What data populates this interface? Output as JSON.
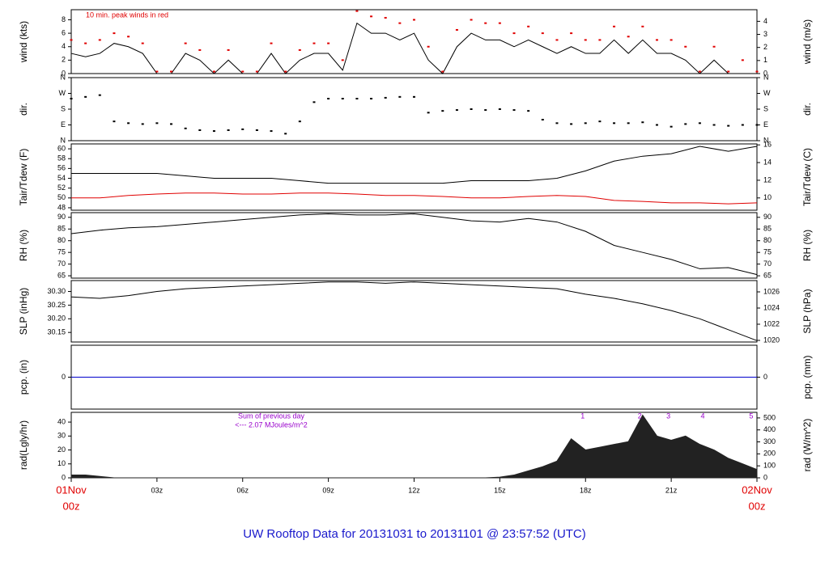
{
  "title": "UW Rooftop Data for 20131031  to  20131101 @ 23:57:52  (UTC)",
  "chart_data": [
    {
      "type": "line",
      "ylabel": "wind (kts)",
      "y2label": "wind (m/s)",
      "annotation": "10 min. peak winds in red",
      "annotation_color": "#e00000",
      "xlim": [
        0,
        24
      ],
      "ylim": [
        0,
        9.5
      ],
      "yticks": [
        0,
        2,
        4,
        6,
        8
      ],
      "y2lim": [
        0,
        4.89
      ],
      "y2ticks": [
        0,
        1,
        2,
        3,
        4
      ],
      "x": [
        0,
        0.5,
        1,
        1.5,
        2,
        2.5,
        3,
        3.5,
        4,
        4.5,
        5,
        5.5,
        6,
        6.5,
        7,
        7.5,
        8,
        8.5,
        9,
        9.5,
        10,
        10.5,
        11,
        11.5,
        12,
        12.5,
        13,
        13.5,
        14,
        14.5,
        15,
        15.5,
        16,
        16.5,
        17,
        17.5,
        18,
        18.5,
        19,
        19.5,
        20,
        20.5,
        21,
        21.5,
        22,
        22.5,
        23,
        23.5,
        24
      ],
      "series": [
        {
          "name": "wind",
          "style": "line",
          "color": "#000000",
          "values": [
            3,
            2.5,
            3,
            4.5,
            4,
            3,
            0,
            0,
            3,
            2,
            0,
            2,
            0,
            0,
            3,
            0,
            2,
            3,
            3,
            0.5,
            7.5,
            6,
            6,
            5,
            6,
            2,
            0,
            4,
            6,
            5,
            5,
            4,
            5,
            4,
            3,
            4,
            3,
            3,
            5,
            3,
            5,
            3,
            3,
            2,
            0,
            2,
            0,
            0,
            0
          ]
        },
        {
          "name": "peak",
          "style": "points",
          "color": "#e00000",
          "values": [
            5,
            4.5,
            5,
            6,
            5.5,
            4.5,
            0.3,
            0.3,
            4.5,
            3.5,
            0.3,
            3.5,
            0.3,
            0.3,
            4.5,
            0.3,
            3.5,
            4.5,
            4.5,
            2,
            9.3,
            8.5,
            8.3,
            7.5,
            8,
            4,
            0.3,
            6.5,
            8,
            7.5,
            7.5,
            6,
            7,
            6,
            5,
            6,
            5,
            5,
            7,
            5.5,
            7,
            5,
            5,
            4,
            0.3,
            4,
            0.3,
            2,
            0.3
          ]
        }
      ]
    },
    {
      "type": "scatter",
      "ylabel": "dir.",
      "y2label": "dir.",
      "xlim": [
        0,
        24
      ],
      "ylim": [
        0,
        360
      ],
      "yticks": [
        {
          "value": 0,
          "label": "N"
        },
        {
          "value": 90,
          "label": "E"
        },
        {
          "value": 180,
          "label": "S"
        },
        {
          "value": 270,
          "label": "W"
        },
        {
          "value": 360,
          "label": "N"
        }
      ],
      "y2lim": [
        0,
        360
      ],
      "y2ticks": [
        {
          "value": 0,
          "label": "N"
        },
        {
          "value": 90,
          "label": "E"
        },
        {
          "value": 180,
          "label": "S"
        },
        {
          "value": 270,
          "label": "W"
        },
        {
          "value": 360,
          "label": "N"
        }
      ],
      "x": [
        0,
        0.5,
        1,
        1.5,
        2,
        2.5,
        3,
        3.5,
        4,
        4.5,
        5,
        5.5,
        6,
        6.5,
        7,
        7.5,
        8,
        8.5,
        9,
        9.5,
        10,
        10.5,
        11,
        11.5,
        12,
        12.5,
        13,
        13.5,
        14,
        14.5,
        15,
        15.5,
        16,
        16.5,
        17,
        17.5,
        18,
        18.5,
        19,
        19.5,
        20,
        20.5,
        21,
        21.5,
        22,
        22.5,
        23,
        23.5,
        24
      ],
      "series": [
        {
          "name": "direction",
          "style": "points",
          "color": "#000000",
          "values": [
            240,
            250,
            260,
            110,
            100,
            95,
            100,
            95,
            70,
            60,
            55,
            60,
            65,
            60,
            55,
            40,
            110,
            220,
            240,
            240,
            240,
            240,
            245,
            250,
            250,
            160,
            170,
            175,
            180,
            175,
            180,
            175,
            170,
            120,
            100,
            95,
            100,
            110,
            100,
            100,
            105,
            90,
            80,
            95,
            100,
            90,
            85,
            90,
            90
          ]
        }
      ]
    },
    {
      "type": "line",
      "ylabel": "Tair/Tdew (F)",
      "y2label": "Tair/Tdew (C)",
      "xlim": [
        0,
        24
      ],
      "ylim": [
        47.5,
        61
      ],
      "yticks": [
        48,
        50,
        52,
        54,
        56,
        58,
        60
      ],
      "y2lim": [
        8.61,
        16.11
      ],
      "y2ticks": [
        10,
        12,
        14,
        16
      ],
      "x": [
        0,
        1,
        2,
        3,
        4,
        5,
        6,
        7,
        8,
        9,
        10,
        11,
        12,
        13,
        14,
        15,
        16,
        17,
        18,
        19,
        20,
        21,
        22,
        23,
        24
      ],
      "series": [
        {
          "name": "Tair",
          "style": "line",
          "color": "#000000",
          "values": [
            55,
            55,
            55,
            55,
            54.5,
            54,
            54,
            54,
            53.5,
            53,
            53,
            53,
            53,
            53,
            53.5,
            53.5,
            53.5,
            54,
            55.5,
            57.5,
            58.5,
            59,
            60.5,
            59.5,
            60.5
          ]
        },
        {
          "name": "Tdew",
          "style": "line",
          "color": "#e00000",
          "values": [
            50,
            50,
            50.5,
            50.8,
            51,
            51,
            50.8,
            50.8,
            51,
            51,
            50.8,
            50.5,
            50.5,
            50.3,
            50,
            50,
            50.3,
            50.5,
            50.3,
            49.5,
            49.3,
            49,
            49,
            48.8,
            49
          ]
        }
      ]
    },
    {
      "type": "line",
      "ylabel": "RH (%)",
      "y2label": "RH (%)",
      "xlim": [
        0,
        24
      ],
      "ylim": [
        64,
        92
      ],
      "yticks": [
        65,
        70,
        75,
        80,
        85,
        90
      ],
      "y2lim": [
        64,
        92
      ],
      "y2ticks": [
        65,
        70,
        75,
        80,
        85,
        90
      ],
      "x": [
        0,
        1,
        2,
        3,
        4,
        5,
        6,
        7,
        8,
        9,
        10,
        11,
        12,
        13,
        14,
        15,
        16,
        17,
        18,
        19,
        20,
        21,
        22,
        23,
        24
      ],
      "series": [
        {
          "name": "RH",
          "style": "line",
          "color": "#000000",
          "values": [
            83,
            84.5,
            85.5,
            86,
            87,
            88,
            89,
            90,
            91,
            91.5,
            91,
            91,
            91.5,
            90,
            88.5,
            88,
            89.5,
            88,
            84,
            78,
            75,
            72,
            68,
            68.5,
            65.5
          ]
        }
      ]
    },
    {
      "type": "line",
      "ylabel": "SLP (inHg)",
      "y2label": "SLP (hPa)",
      "xlim": [
        0,
        24
      ],
      "ylim": [
        30.115,
        30.34
      ],
      "yticks": [
        30.15,
        {
          "value": 30.2,
          "label": "30.20"
        },
        30.25,
        {
          "value": 30.3,
          "label": "30.30"
        }
      ],
      "y2lim": [
        1019.8,
        1027.4
      ],
      "y2ticks": [
        1020,
        1022,
        1024,
        1026
      ],
      "x": [
        0,
        1,
        2,
        3,
        4,
        5,
        6,
        7,
        8,
        9,
        10,
        11,
        12,
        13,
        14,
        15,
        16,
        17,
        18,
        19,
        20,
        21,
        22,
        23,
        24
      ],
      "series": [
        {
          "name": "SLP",
          "style": "line",
          "color": "#000000",
          "values": [
            30.28,
            30.275,
            30.285,
            30.3,
            30.31,
            30.315,
            30.32,
            30.325,
            30.33,
            30.335,
            30.335,
            30.33,
            30.335,
            30.33,
            30.325,
            30.32,
            30.315,
            30.31,
            30.29,
            30.275,
            30.255,
            30.23,
            30.2,
            30.16,
            30.12
          ]
        }
      ]
    },
    {
      "type": "line",
      "ylabel": "pcp. (in)",
      "y2label": "pcp. (mm)",
      "xlim": [
        0,
        24
      ],
      "ylim": [
        -1,
        1
      ],
      "yticks": [
        0
      ],
      "y2lim": [
        -25.4,
        25.4
      ],
      "y2ticks": [
        0
      ],
      "x": [
        0,
        24
      ],
      "series": [
        {
          "name": "pcp",
          "style": "line",
          "color": "#0000cc",
          "values": [
            0,
            0
          ]
        }
      ]
    },
    {
      "type": "area",
      "ylabel": "rad(Lgly/hr)",
      "y2label": "rad (W/m^2)",
      "annotations": [
        "Sum of previous day",
        "<--- 2.07 MJoules/m^2"
      ],
      "annotation_color": "#9900cc",
      "hour_marks": {
        "x": [
          17.9,
          19.9,
          20.9,
          22.1,
          23.8
        ],
        "labels": [
          "1",
          "2",
          "3",
          "4",
          "5"
        ]
      },
      "xlim": [
        0,
        24
      ],
      "ylim": [
        0,
        47
      ],
      "yticks": [
        0,
        10,
        20,
        30,
        40
      ],
      "y2lim": [
        0,
        546.6
      ],
      "y2ticks": [
        0,
        100,
        200,
        300,
        400,
        500
      ],
      "xticks": [
        {
          "value": 0,
          "label": [
            "01Nov",
            "00z"
          ]
        },
        {
          "value": 3,
          "label": [
            "03z"
          ]
        },
        {
          "value": 6,
          "label": [
            "06z"
          ]
        },
        {
          "value": 9,
          "label": [
            "09z"
          ]
        },
        {
          "value": 12,
          "label": [
            "12z"
          ]
        },
        {
          "value": 15,
          "label": [
            "15z"
          ]
        },
        {
          "value": 18,
          "label": [
            "18z"
          ]
        },
        {
          "value": 21,
          "label": [
            "21z"
          ]
        },
        {
          "value": 24,
          "label": [
            "02Nov",
            "00z"
          ]
        }
      ],
      "x": [
        0,
        0.5,
        1,
        1.5,
        2,
        2.5,
        3,
        3.5,
        4,
        4.5,
        5,
        5.5,
        6,
        6.5,
        7,
        7.5,
        8,
        8.5,
        9,
        9.5,
        10,
        10.5,
        11,
        11.5,
        12,
        12.5,
        13,
        13.5,
        14,
        14.5,
        15,
        15.5,
        16,
        16.5,
        17,
        17.5,
        18,
        18.5,
        19,
        19.5,
        20,
        20.5,
        21,
        21.5,
        22,
        22.5,
        23,
        23.5,
        24
      ],
      "series": [
        {
          "name": "radiation",
          "style": "area",
          "color": "#222222",
          "values": [
            2,
            2,
            1,
            0,
            0,
            0,
            0,
            0,
            0,
            0,
            0,
            0,
            0,
            0,
            0,
            0,
            0,
            0,
            0,
            0,
            0,
            0,
            0,
            0,
            0,
            0,
            0,
            0,
            0,
            0,
            0.5,
            2,
            5,
            8,
            12,
            28,
            20,
            22,
            24,
            26,
            45,
            30,
            27,
            30,
            24,
            20,
            14,
            10,
            6
          ]
        }
      ]
    }
  ]
}
